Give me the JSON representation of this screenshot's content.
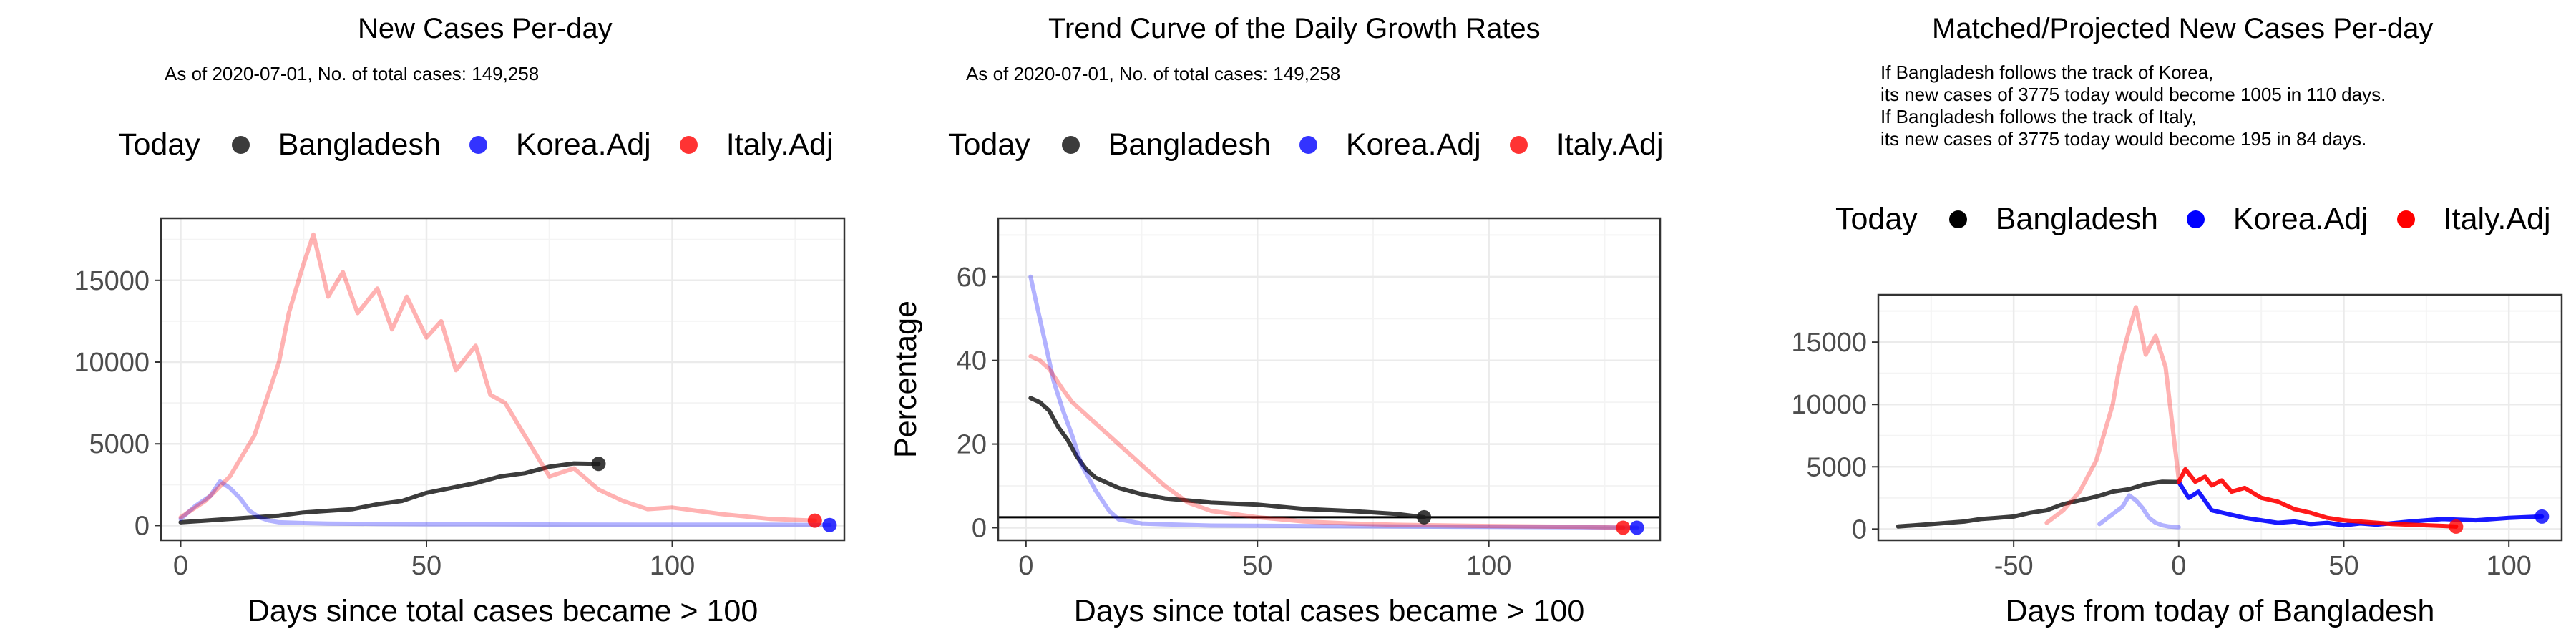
{
  "colors": {
    "bangladesh": "#1a1a1a",
    "korea": "#0000ff",
    "italy": "#ff0000"
  },
  "legend": {
    "title": "Today",
    "items": [
      "Bangladesh",
      "Korea.Adj",
      "Italy.Adj"
    ]
  },
  "panels": [
    {
      "title": "New Cases Per-day",
      "subtitle": [
        "As of 2020-07-01, No. of total cases: 149,258"
      ],
      "xlabel": "Days since total cases became > 100",
      "ylabel": ""
    },
    {
      "title": "Trend Curve of the Daily Growth Rates",
      "subtitle": [
        "As of 2020-07-01, No. of total cases: 149,258"
      ],
      "xlabel": "Days since total cases became > 100",
      "ylabel": "Percentage"
    },
    {
      "title": "Matched/Projected New Cases Per-day",
      "subtitle": [
        "If Bangladesh follows the track of Korea,",
        "its new cases of 3775 today would become 1005 in 110 days.",
        "If Bangladesh follows the track of Italy,",
        "its new cases of 3775 today would become 195 in 84 days."
      ],
      "xlabel": "Days from today of Bangladesh",
      "ylabel": ""
    }
  ],
  "chart_data": [
    {
      "type": "line",
      "title": "New Cases Per-day",
      "xlabel": "Days since total cases became > 100",
      "ylabel": "",
      "xlim": [
        -4,
        135
      ],
      "ylim": [
        -900,
        18800
      ],
      "xticks": [
        0,
        50,
        100
      ],
      "yticks": [
        0,
        5000,
        10000,
        15000
      ],
      "grid": true,
      "legend_position": "top",
      "series": [
        {
          "name": "Bangladesh",
          "role": "bangladesh",
          "alpha": 0.85,
          "x": [
            0,
            5,
            10,
            15,
            20,
            25,
            30,
            35,
            40,
            45,
            50,
            55,
            60,
            65,
            70,
            75,
            80,
            85
          ],
          "y": [
            200,
            300,
            400,
            500,
            600,
            800,
            900,
            1000,
            1300,
            1500,
            2000,
            2300,
            2600,
            3000,
            3200,
            3600,
            3800,
            3775
          ],
          "end_point": [
            85,
            3775
          ]
        },
        {
          "name": "Korea.Adj",
          "role": "korea",
          "alpha": 0.3,
          "x": [
            0,
            3,
            6,
            8,
            10,
            12,
            14,
            16,
            18,
            20,
            25,
            30,
            40,
            50,
            60,
            80,
            100,
            120,
            132
          ],
          "y": [
            400,
            1200,
            1800,
            2700,
            2300,
            1700,
            900,
            500,
            300,
            200,
            150,
            120,
            100,
            80,
            80,
            60,
            50,
            50,
            30
          ],
          "end_point": [
            132,
            30
          ]
        },
        {
          "name": "Italy.Adj",
          "role": "italy",
          "alpha": 0.3,
          "x": [
            0,
            5,
            10,
            15,
            20,
            22,
            25,
            27,
            30,
            33,
            36,
            40,
            43,
            46,
            50,
            53,
            56,
            60,
            63,
            66,
            70,
            75,
            80,
            85,
            90,
            95,
            100,
            110,
            120,
            129
          ],
          "y": [
            500,
            1500,
            3000,
            5500,
            10000,
            13000,
            16000,
            17800,
            14000,
            15500,
            13000,
            14500,
            12000,
            14000,
            11500,
            12500,
            9500,
            11000,
            8000,
            7500,
            5500,
            3000,
            3500,
            2200,
            1500,
            1000,
            1100,
            700,
            400,
            300
          ],
          "end_point": [
            129,
            300
          ]
        }
      ]
    },
    {
      "type": "line",
      "title": "Trend Curve of the Daily Growth Rates",
      "xlabel": "Days since total cases became > 100",
      "ylabel": "Percentage",
      "xlim": [
        -6,
        137
      ],
      "ylim": [
        -3,
        74
      ],
      "xticks": [
        0,
        50,
        100
      ],
      "yticks": [
        0,
        20,
        40,
        60
      ],
      "grid": true,
      "legend_position": "top",
      "hline": 2.5,
      "series": [
        {
          "name": "Bangladesh",
          "role": "bangladesh",
          "alpha": 0.85,
          "x": [
            1,
            3,
            5,
            7,
            9,
            11,
            13,
            15,
            20,
            25,
            30,
            40,
            50,
            60,
            70,
            80,
            86
          ],
          "y": [
            31,
            30,
            28,
            24,
            21,
            17,
            14,
            12,
            9.5,
            8,
            7,
            6,
            5.5,
            4.5,
            4,
            3.3,
            2.5
          ],
          "end_point": [
            86,
            2.5
          ]
        },
        {
          "name": "Korea.Adj",
          "role": "korea",
          "alpha": 0.3,
          "x": [
            1,
            2,
            4,
            6,
            8,
            10,
            12,
            15,
            18,
            20,
            25,
            30,
            40,
            60,
            80,
            100,
            120,
            132
          ],
          "y": [
            60,
            55,
            45,
            35,
            28,
            22,
            15,
            9,
            4,
            2,
            1,
            0.8,
            0.5,
            0.4,
            0.3,
            0.2,
            0.1,
            0
          ],
          "end_point": [
            132,
            0
          ]
        },
        {
          "name": "Italy.Adj",
          "role": "italy",
          "alpha": 0.3,
          "x": [
            1,
            3,
            5,
            8,
            10,
            13,
            15,
            18,
            20,
            25,
            30,
            35,
            40,
            50,
            60,
            70,
            80,
            100,
            120,
            129
          ],
          "y": [
            41,
            40,
            38,
            33,
            30,
            27,
            25,
            22,
            20,
            15,
            10,
            6,
            4,
            2.5,
            1.5,
            1,
            0.7,
            0.4,
            0.2,
            0
          ],
          "end_point": [
            129,
            0
          ]
        }
      ]
    },
    {
      "type": "line",
      "title": "Matched/Projected New Cases Per-day",
      "xlabel": "Days from today of Bangladesh",
      "ylabel": "",
      "xlim": [
        -91,
        116
      ],
      "ylim": [
        -900,
        18800
      ],
      "xticks": [
        -50,
        0,
        50,
        100
      ],
      "yticks": [
        0,
        5000,
        10000,
        15000
      ],
      "grid": true,
      "legend_position": "top",
      "series": [
        {
          "name": "Bangladesh",
          "role": "bangladesh",
          "alpha": 0.85,
          "x": [
            -85,
            -80,
            -75,
            -70,
            -65,
            -60,
            -55,
            -50,
            -45,
            -40,
            -35,
            -30,
            -25,
            -20,
            -15,
            -10,
            -5,
            0
          ],
          "y": [
            200,
            300,
            400,
            500,
            600,
            800,
            900,
            1000,
            1300,
            1500,
            2000,
            2300,
            2600,
            3000,
            3200,
            3600,
            3800,
            3775
          ],
          "end_point": null
        },
        {
          "name": "Korea.Adj (matched)",
          "role": "korea",
          "alpha": 0.3,
          "x": [
            -24,
            -20,
            -17,
            -15,
            -13,
            -11,
            -9,
            -7,
            -5,
            -3,
            0
          ],
          "y": [
            400,
            1200,
            1800,
            2700,
            2300,
            1700,
            900,
            500,
            300,
            200,
            150
          ],
          "end_point": null
        },
        {
          "name": "Italy.Adj (matched)",
          "role": "italy",
          "alpha": 0.3,
          "x": [
            -40,
            -35,
            -30,
            -25,
            -20,
            -18,
            -15,
            -13,
            -10,
            -7,
            -4,
            0
          ],
          "y": [
            500,
            1500,
            3000,
            5500,
            10000,
            13000,
            16000,
            17800,
            14000,
            15500,
            13000,
            4000
          ],
          "end_point": null
        },
        {
          "name": "Korea.Adj (projected)",
          "role": "korea",
          "alpha": 0.9,
          "x": [
            0,
            3,
            6,
            10,
            15,
            20,
            25,
            30,
            35,
            40,
            45,
            50,
            55,
            60,
            70,
            80,
            90,
            100,
            110
          ],
          "y": [
            3775,
            2500,
            3000,
            1500,
            1200,
            900,
            700,
            500,
            600,
            400,
            500,
            300,
            450,
            350,
            600,
            800,
            700,
            900,
            1005
          ],
          "end_point": [
            110,
            1005
          ]
        },
        {
          "name": "Italy.Adj (projected)",
          "role": "italy",
          "alpha": 0.9,
          "x": [
            0,
            2,
            5,
            8,
            10,
            13,
            16,
            20,
            25,
            30,
            35,
            40,
            45,
            50,
            55,
            60,
            65,
            70,
            75,
            80,
            84
          ],
          "y": [
            3775,
            4800,
            3800,
            4200,
            3500,
            3900,
            3000,
            3300,
            2500,
            2200,
            1600,
            1300,
            900,
            700,
            600,
            500,
            400,
            350,
            300,
            250,
            195
          ],
          "end_point": [
            84,
            195
          ]
        }
      ]
    }
  ]
}
